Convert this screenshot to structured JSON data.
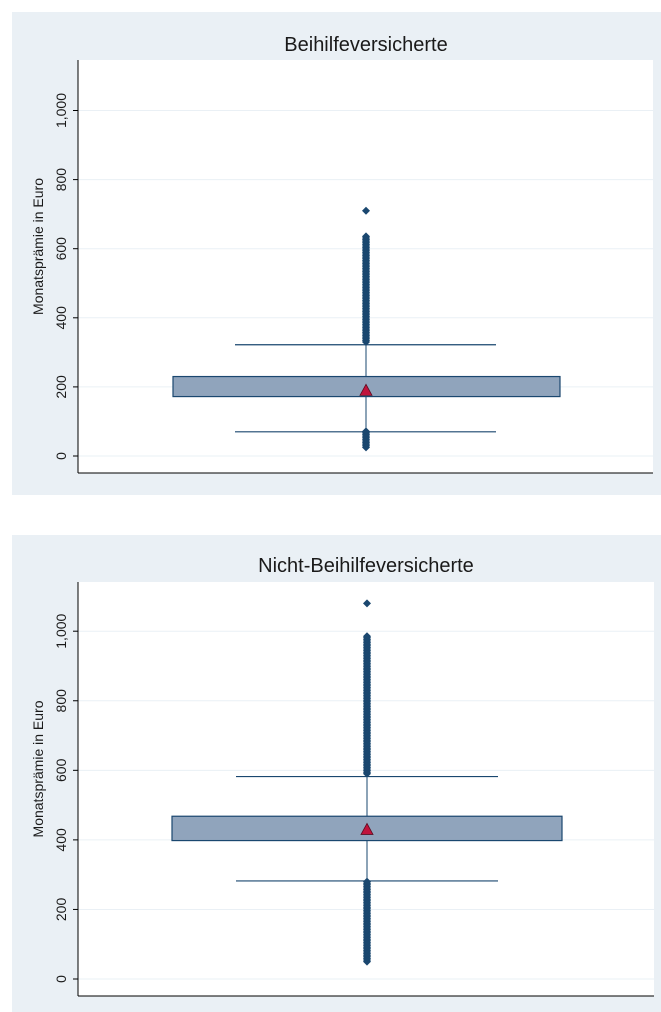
{
  "chart_data": [
    {
      "type": "box",
      "title": "Beihilfeversicherte",
      "ylabel": "Monatsprämie in Euro",
      "xlabel": "",
      "ylim": [
        0,
        1150
      ],
      "yticks": [
        0,
        200,
        400,
        600,
        800,
        1000
      ],
      "yticklabels": [
        "0",
        "200",
        "400",
        "600",
        "800",
        "1,000"
      ],
      "grid": true,
      "box": {
        "lower_whisker": 70,
        "q1": 172,
        "median": 190,
        "q3": 230,
        "upper_whisker": 322,
        "mean": 190
      },
      "outliers_high": {
        "from": 330,
        "to": 637,
        "isolated": [
          710
        ]
      },
      "outliers_low": {
        "from": 25,
        "to": 75,
        "isolated": []
      }
    },
    {
      "type": "box",
      "title": "Nicht-Beihilfeversicherte",
      "ylabel": "Monatsprämie in Euro",
      "xlabel": "",
      "ylim": [
        0,
        1150
      ],
      "yticks": [
        0,
        200,
        400,
        600,
        800,
        1000
      ],
      "yticklabels": [
        "0",
        "200",
        "400",
        "600",
        "800",
        "1,000"
      ],
      "grid": true,
      "box": {
        "lower_whisker": 282,
        "q1": 398,
        "median": 430,
        "q3": 468,
        "upper_whisker": 582,
        "mean": 430
      },
      "outliers_high": {
        "from": 590,
        "to": 990,
        "isolated": [
          1080
        ]
      },
      "outliers_low": {
        "from": 50,
        "to": 282,
        "isolated": []
      }
    }
  ],
  "colors": {
    "panel_bg": "#eaf0f5",
    "plot_bg": "#ffffff",
    "box_fill": "#90a4bc",
    "box_stroke": "#1a476f",
    "marker": "#1a476f",
    "mean_marker": "#c0143c",
    "grid": "#eaf0f5",
    "axis": "#000000"
  }
}
